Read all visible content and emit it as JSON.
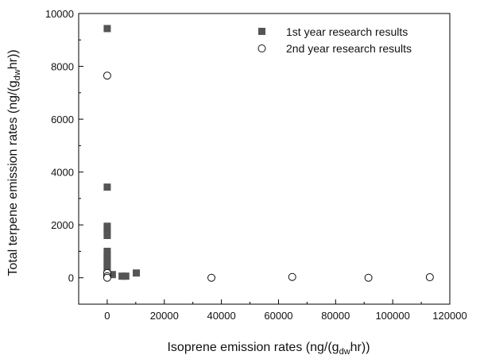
{
  "chart_data": {
    "type": "scatter",
    "xlabel": {
      "main": "Isoprene emission rates (ng/(g",
      "sub": "dw",
      "rest": "hr))"
    },
    "ylabel": {
      "main": "Total terpene emission rates (ng/(g",
      "sub": "dw",
      "rest": "hr))"
    },
    "xlim": [
      -10000,
      120000
    ],
    "ylim": [
      -1000,
      10000
    ],
    "xticks": [
      0,
      20000,
      40000,
      60000,
      80000,
      100000,
      120000
    ],
    "yticks": [
      0,
      2000,
      4000,
      6000,
      8000,
      10000
    ],
    "legend_position": "top-right",
    "series": [
      {
        "name": "1st year research results",
        "marker": "square-filled",
        "color": "#555555",
        "points": [
          [
            0,
            9430
          ],
          [
            0,
            3430
          ],
          [
            0,
            1950
          ],
          [
            0,
            1850
          ],
          [
            0,
            1700
          ],
          [
            0,
            1600
          ],
          [
            0,
            1000
          ],
          [
            0,
            900
          ],
          [
            0,
            800
          ],
          [
            0,
            700
          ],
          [
            0,
            600
          ],
          [
            0,
            500
          ],
          [
            0,
            400
          ],
          [
            0,
            300
          ],
          [
            0,
            200
          ],
          [
            0,
            150
          ],
          [
            0,
            100
          ],
          [
            1800,
            120
          ],
          [
            5200,
            60
          ],
          [
            6500,
            60
          ],
          [
            10200,
            180
          ]
        ]
      },
      {
        "name": "2nd year research results",
        "marker": "circle-open",
        "color": "#111111",
        "points": [
          [
            0,
            7650
          ],
          [
            0,
            180
          ],
          [
            0,
            60
          ],
          [
            0,
            0
          ],
          [
            36500,
            0
          ],
          [
            64800,
            30
          ],
          [
            91500,
            0
          ],
          [
            113000,
            20
          ]
        ]
      }
    ]
  }
}
